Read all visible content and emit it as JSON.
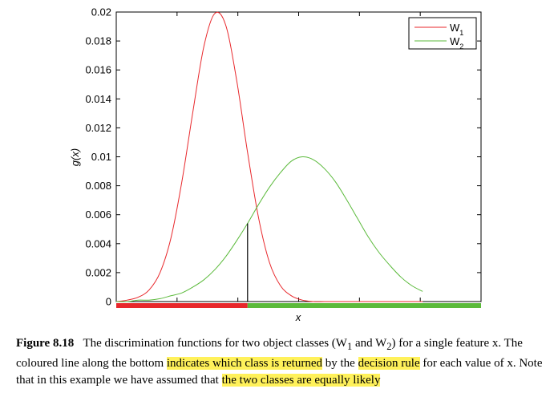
{
  "chart_data": {
    "type": "line",
    "ylabel": "g(x)",
    "xlabel": "x",
    "ylim": [
      0,
      0.02
    ],
    "yticks": [
      "0",
      "0.002",
      "0.004",
      "0.006",
      "0.008",
      "0.01",
      "0.012",
      "0.014",
      "0.016",
      "0.018",
      "0.02"
    ],
    "xlim": [
      0,
      1
    ],
    "grid": false,
    "legend_position": "top-right",
    "series": [
      {
        "name": "W",
        "subscript": "1",
        "color": "#e8272b",
        "x": [
          0.0,
          0.03,
          0.06,
          0.09,
          0.12,
          0.15,
          0.18,
          0.21,
          0.24,
          0.27,
          0.3,
          0.33,
          0.36,
          0.39,
          0.42,
          0.45,
          0.48,
          0.51,
          0.54,
          0.57,
          0.6,
          0.63,
          0.66,
          0.69,
          0.72,
          0.75,
          0.78,
          0.81,
          0.84
        ],
        "y": [
          0.0,
          0.0001,
          0.0003,
          0.0008,
          0.002,
          0.0044,
          0.0083,
          0.0131,
          0.0176,
          0.0199,
          0.0191,
          0.0153,
          0.0103,
          0.0058,
          0.0027,
          0.0011,
          0.0004,
          0.0001,
          0.0,
          0.0,
          0.0,
          0.0,
          0.0,
          0.0,
          0.0,
          0.0,
          0.0,
          0.0,
          0.0
        ]
      },
      {
        "name": "W",
        "subscript": "2",
        "color": "#5bba3b",
        "x": [
          0.0,
          0.03,
          0.06,
          0.09,
          0.12,
          0.15,
          0.18,
          0.21,
          0.24,
          0.27,
          0.3,
          0.33,
          0.36,
          0.39,
          0.42,
          0.45,
          0.48,
          0.51,
          0.54,
          0.57,
          0.6,
          0.63,
          0.66,
          0.69,
          0.72,
          0.75,
          0.78,
          0.81,
          0.84
        ],
        "y": [
          0.0,
          0.0,
          0.0001,
          0.0001,
          0.0002,
          0.0004,
          0.0006,
          0.001,
          0.0015,
          0.0022,
          0.0031,
          0.0042,
          0.0054,
          0.0067,
          0.0079,
          0.0089,
          0.0097,
          0.01,
          0.0098,
          0.0092,
          0.0083,
          0.0071,
          0.0058,
          0.0045,
          0.0034,
          0.0025,
          0.0017,
          0.0011,
          0.0007
        ]
      }
    ],
    "decision_boundary_x": 0.36,
    "decision_bar": [
      {
        "class": "W1",
        "from": 0.0,
        "to": 0.36,
        "color": "#e8272b"
      },
      {
        "class": "W2",
        "from": 0.36,
        "to": 1.0,
        "color": "#5bba3b"
      }
    ]
  },
  "caption": {
    "label": "Figure 8.18",
    "seg1": "The discrimination functions for two object classes (W",
    "sub1": "1",
    "seg2": " and W",
    "sub2": "2",
    "seg3": ") for a single feature x. The coloured line along the bottom ",
    "hl1": "indicates which class is returned",
    "seg4": " by the ",
    "hl2": "decision rule",
    "seg5": " for each value of x. Note that in this example we have assumed that ",
    "hl3": "the two classes are equally likely"
  }
}
